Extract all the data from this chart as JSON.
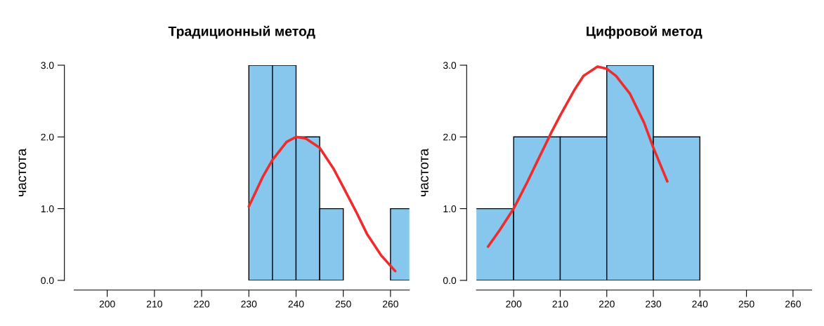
{
  "chart_data": [
    {
      "type": "histogram",
      "title": "Традиционный метод",
      "ylabel": "частота",
      "xlim": [
        193,
        264
      ],
      "xticks": [
        200,
        210,
        220,
        230,
        240,
        250,
        260
      ],
      "ylim": [
        0,
        3
      ],
      "yticks": [
        {
          "value": 0,
          "label": "0.0"
        },
        {
          "value": 1,
          "label": "1.0"
        },
        {
          "value": 2,
          "label": "2.0"
        },
        {
          "value": 3,
          "label": "3.0"
        }
      ],
      "series": [
        {
          "color": "#87c7ed",
          "bins": [
            230,
            235,
            240,
            245,
            250,
            255,
            260,
            265
          ],
          "values": [
            3,
            3,
            2,
            1,
            0,
            0,
            1
          ]
        },
        {
          "type": "line",
          "color": "#ee2c2c",
          "x": [
            230,
            233,
            235,
            238,
            240,
            242,
            245,
            248,
            250,
            253,
            255,
            258,
            261
          ],
          "values": [
            1.03,
            1.45,
            1.68,
            1.93,
            2.0,
            1.98,
            1.85,
            1.55,
            1.3,
            0.92,
            0.65,
            0.35,
            0.13
          ]
        }
      ]
    },
    {
      "type": "histogram",
      "title": "Цифровой метод",
      "ylabel": "частота",
      "xlim": [
        192,
        264
      ],
      "xticks": [
        200,
        210,
        220,
        230,
        240,
        250,
        260
      ],
      "ylim": [
        0,
        3
      ],
      "yticks": [
        {
          "value": 0,
          "label": "0.0"
        },
        {
          "value": 1,
          "label": "1.0"
        },
        {
          "value": 2,
          "label": "2.0"
        },
        {
          "value": 3,
          "label": "3.0"
        }
      ],
      "series": [
        {
          "color": "#87c7ed",
          "bins": [
            190,
            200,
            210,
            220,
            230,
            240
          ],
          "values": [
            1,
            2,
            2,
            3,
            2
          ]
        },
        {
          "type": "line",
          "color": "#ee2c2c",
          "x": [
            194.5,
            197,
            200,
            203,
            205,
            208,
            210,
            213,
            215,
            218,
            220,
            222,
            225,
            228,
            230,
            233
          ],
          "values": [
            0.47,
            0.7,
            1.0,
            1.38,
            1.65,
            2.05,
            2.3,
            2.65,
            2.85,
            2.98,
            2.95,
            2.85,
            2.6,
            2.2,
            1.85,
            1.38
          ]
        }
      ]
    }
  ]
}
